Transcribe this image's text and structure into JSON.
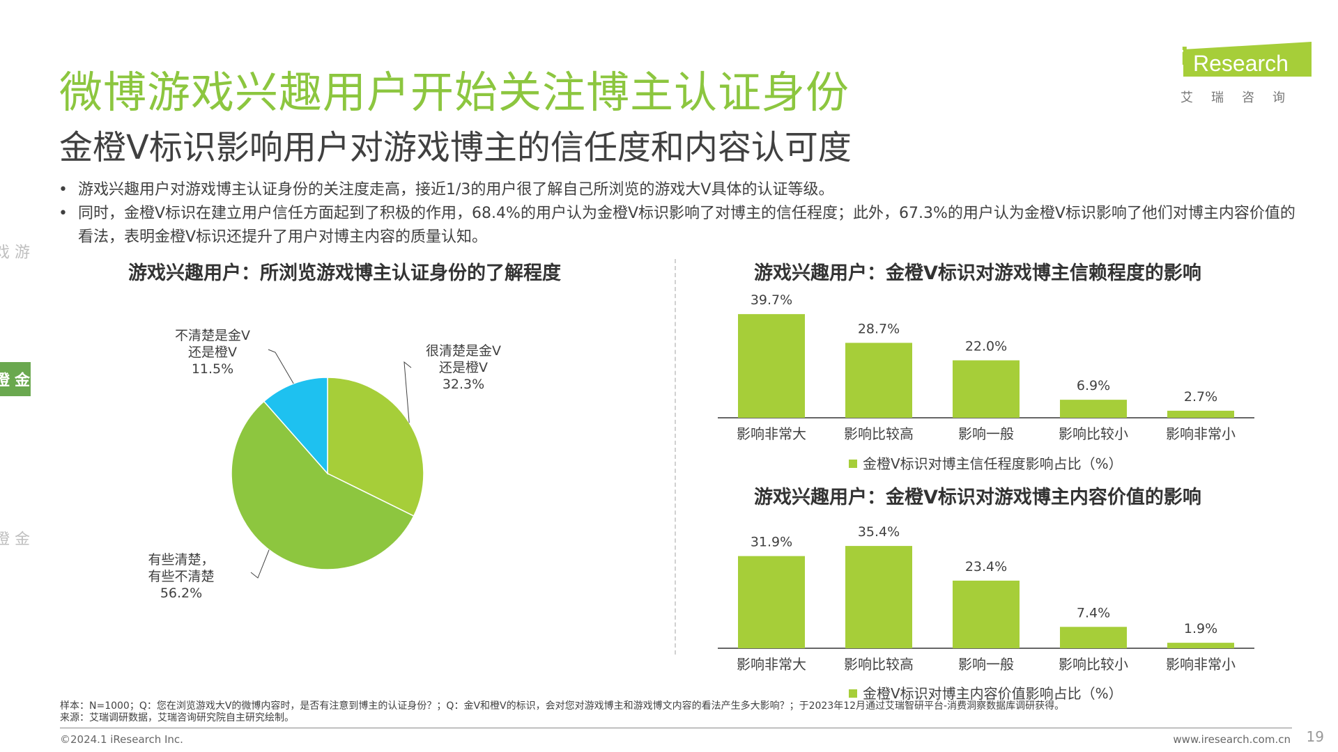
{
  "header": {
    "title": "微博游戏兴趣用户开始关注博主认证身份",
    "subtitle": "金橙V标识影响用户对游戏博主的信任度和内容认可度"
  },
  "logo": {
    "brand": "iResearch",
    "brand_rest": "Research",
    "chinese": "艾瑞咨询"
  },
  "bullets": [
    "游戏兴趣用户对游戏博主认证身份的关注度走高，接近1/3的用户很了解自己所浏览的游戏大V具体的认证等级。",
    "同时，金橙V标识在建立用户信任方面起到了积极的作用，68.4%的用户认为金橙V标识影响了对博主的信任程度；此外，67.3%的用户认为金橙V标识影响了他们对博主内容价值的看法，表明金橙V标识还提升了用户对博主内容的质量认知。"
  ],
  "bullet_symbol": "•",
  "side_nav": [
    {
      "label": "游戏生态",
      "active": false
    },
    {
      "label": "金橙V体系",
      "active": true
    },
    {
      "label": "金橙V效果",
      "active": false
    }
  ],
  "colors": {
    "title_green": "#8cc63f",
    "pie": [
      "#a6ce39",
      "#8dc63f",
      "#1ec1f0"
    ],
    "bar": "#a6ce39",
    "nav_active": "#6aa84f"
  },
  "chart_data": [
    {
      "type": "pie",
      "title": "游戏兴趣用户：所浏览游戏博主认证身份的了解程度",
      "slices": [
        {
          "label": [
            "很清楚是金V",
            "还是橙V",
            "32.3%"
          ],
          "value": 32.3,
          "color": "#a6ce39"
        },
        {
          "label": [
            "有些清楚，",
            "有些不清楚",
            "56.2%"
          ],
          "value": 56.2,
          "color": "#8dc63f"
        },
        {
          "label": [
            "不清楚是金V",
            "还是橙V",
            "11.5%"
          ],
          "value": 11.5,
          "color": "#1ec1f0"
        }
      ]
    },
    {
      "type": "bar",
      "title": "游戏兴趣用户：金橙V标识对游戏博主信赖程度的影响",
      "categories": [
        "影响非常大",
        "影响比较高",
        "影响一般",
        "影响比较小",
        "影响非常小"
      ],
      "series": [
        {
          "name": "金橙V标识对博主信任程度影响占比（%）",
          "values": [
            39.7,
            28.7,
            22.0,
            6.9,
            2.7
          ],
          "labels": [
            "39.7%",
            "28.7%",
            "22.0%",
            "6.9%",
            "2.7%"
          ]
        }
      ],
      "ylim": [
        0,
        40
      ],
      "legend": "bottom"
    },
    {
      "type": "bar",
      "title": "游戏兴趣用户：金橙V标识对游戏博主内容价值的影响",
      "categories": [
        "影响非常大",
        "影响比较高",
        "影响一般",
        "影响比较小",
        "影响非常小"
      ],
      "series": [
        {
          "name": "金橙V标识对博主内容价值影响占比（%）",
          "values": [
            31.9,
            35.4,
            23.4,
            7.4,
            1.9
          ],
          "labels": [
            "31.9%",
            "35.4%",
            "23.4%",
            "7.4%",
            "1.9%"
          ]
        }
      ],
      "ylim": [
        0,
        40
      ],
      "legend": "bottom"
    }
  ],
  "notes": {
    "sample": "样本：N=1000；Q：您在浏览游戏大V的微博内容时，是否有注意到博主的认证身份？；Q：金V和橙V的标识，会对您对游戏博主和游戏博文内容的看法产生多大影响？；于2023年12月通过艾瑞智研平台-消费洞察数据库调研获得。",
    "source": "来源：艾瑞调研数据，艾瑞咨询研究院自主研究绘制。"
  },
  "footer": {
    "copyright": "©2024.1 iResearch Inc.",
    "website": "www.iresearch.com.cn",
    "page": "19"
  }
}
